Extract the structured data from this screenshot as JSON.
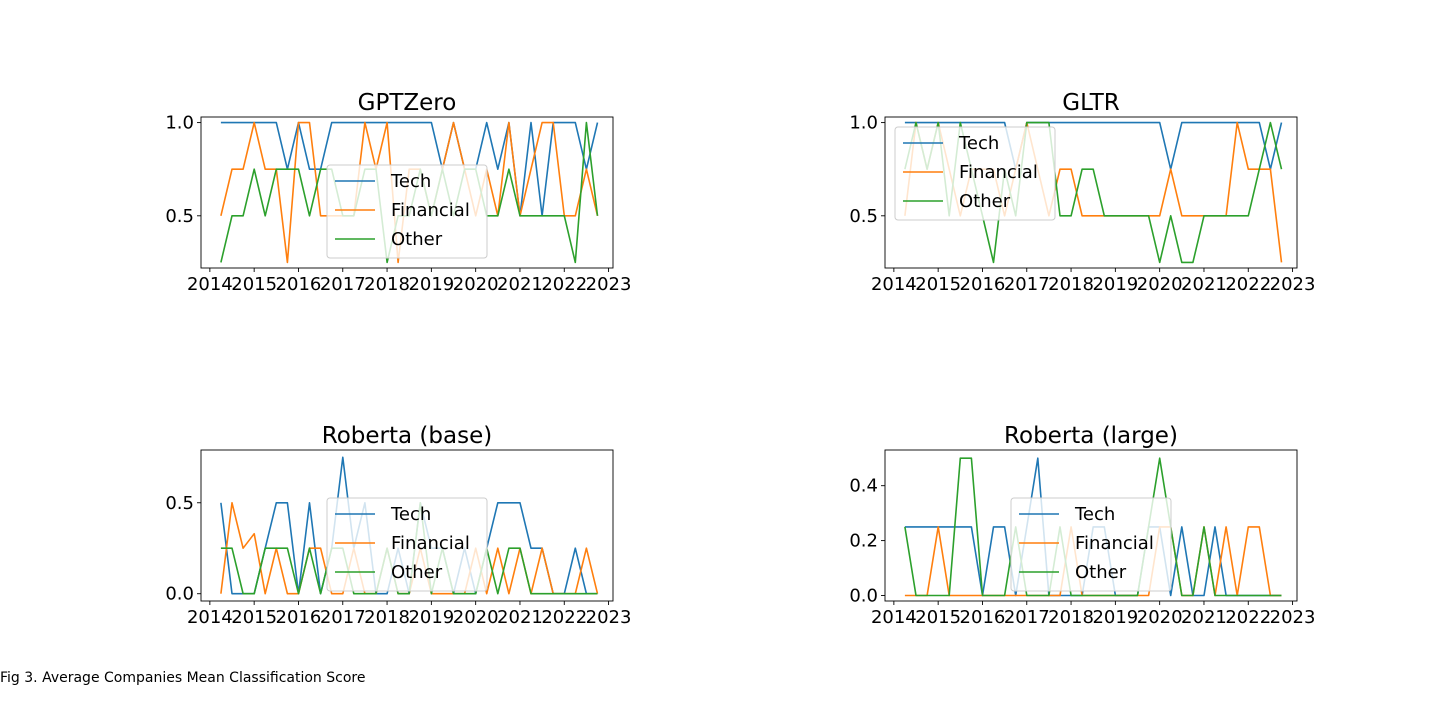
{
  "caption": "Fig 3. Average Companies Mean Classification Score",
  "colors": {
    "Tech": "#1f77b4",
    "Financial": "#ff7f0e",
    "Other": "#2ca02c"
  },
  "chart_data": [
    {
      "type": "line",
      "title": "GPTZero",
      "xlabel": "",
      "ylabel": "",
      "xlim": [
        2013.8,
        2023.1
      ],
      "ylim": [
        0.22,
        1.03
      ],
      "xticks": [
        "2014",
        "2015",
        "2016",
        "2017",
        "2018",
        "2019",
        "2020",
        "2021",
        "2022",
        "2023"
      ],
      "yticks": [
        "0.5",
        "1.0"
      ],
      "legend": [
        "Tech",
        "Financial",
        "Other"
      ],
      "legend_loc": "center",
      "x": [
        2014.25,
        2014.5,
        2014.75,
        2015.0,
        2015.25,
        2015.5,
        2015.75,
        2016.0,
        2016.25,
        2016.5,
        2016.75,
        2017.0,
        2017.25,
        2017.5,
        2017.75,
        2018.0,
        2018.25,
        2018.5,
        2018.75,
        2019.0,
        2019.25,
        2019.5,
        2019.75,
        2020.0,
        2020.25,
        2020.5,
        2020.75,
        2021.0,
        2021.25,
        2021.5,
        2021.75,
        2022.0,
        2022.25,
        2022.5,
        2022.75
      ],
      "series": [
        {
          "name": "Tech",
          "values": [
            1.0,
            1.0,
            1.0,
            1.0,
            1.0,
            1.0,
            0.75,
            1.0,
            0.75,
            0.75,
            1.0,
            1.0,
            1.0,
            1.0,
            1.0,
            1.0,
            1.0,
            1.0,
            1.0,
            1.0,
            0.75,
            1.0,
            0.75,
            0.75,
            1.0,
            0.75,
            1.0,
            0.5,
            1.0,
            0.5,
            1.0,
            1.0,
            1.0,
            0.75,
            1.0
          ]
        },
        {
          "name": "Financial",
          "values": [
            0.5,
            0.75,
            0.75,
            1.0,
            0.75,
            0.75,
            0.25,
            1.0,
            1.0,
            0.5,
            0.5,
            0.5,
            0.5,
            1.0,
            0.75,
            1.0,
            0.25,
            0.75,
            0.75,
            0.5,
            0.75,
            1.0,
            0.75,
            0.5,
            0.75,
            0.5,
            1.0,
            0.5,
            0.75,
            1.0,
            1.0,
            0.5,
            0.5,
            0.75,
            0.5
          ]
        },
        {
          "name": "Other",
          "values": [
            0.25,
            0.5,
            0.5,
            0.75,
            0.5,
            0.75,
            0.75,
            0.75,
            0.5,
            0.75,
            0.75,
            0.5,
            0.5,
            0.75,
            0.75,
            0.25,
            0.5,
            0.5,
            0.75,
            0.5,
            0.75,
            0.5,
            0.75,
            0.75,
            0.5,
            0.5,
            0.75,
            0.5,
            0.5,
            0.5,
            0.5,
            0.5,
            0.25,
            1.0,
            0.5
          ]
        }
      ]
    },
    {
      "type": "line",
      "title": "GLTR",
      "xlabel": "",
      "ylabel": "",
      "xlim": [
        2013.8,
        2023.1
      ],
      "ylim": [
        0.22,
        1.03
      ],
      "xticks": [
        "2014",
        "2015",
        "2016",
        "2017",
        "2018",
        "2019",
        "2020",
        "2021",
        "2022",
        "2023"
      ],
      "yticks": [
        "0.5",
        "1.0"
      ],
      "legend": [
        "Tech",
        "Financial",
        "Other"
      ],
      "legend_loc": "upper left",
      "x": [
        2014.25,
        2014.5,
        2014.75,
        2015.0,
        2015.25,
        2015.5,
        2015.75,
        2016.0,
        2016.25,
        2016.5,
        2016.75,
        2017.0,
        2017.25,
        2017.5,
        2017.75,
        2018.0,
        2018.25,
        2018.5,
        2018.75,
        2019.0,
        2019.25,
        2019.5,
        2019.75,
        2020.0,
        2020.25,
        2020.5,
        2020.75,
        2021.0,
        2021.25,
        2021.5,
        2021.75,
        2022.0,
        2022.25,
        2022.5,
        2022.75
      ],
      "series": [
        {
          "name": "Tech",
          "values": [
            1.0,
            1.0,
            1.0,
            1.0,
            1.0,
            1.0,
            1.0,
            1.0,
            1.0,
            1.0,
            0.75,
            1.0,
            1.0,
            1.0,
            1.0,
            1.0,
            1.0,
            1.0,
            1.0,
            1.0,
            1.0,
            1.0,
            1.0,
            1.0,
            0.75,
            1.0,
            1.0,
            1.0,
            1.0,
            1.0,
            1.0,
            1.0,
            1.0,
            0.75,
            1.0
          ]
        },
        {
          "name": "Financial",
          "values": [
            0.5,
            1.0,
            0.75,
            1.0,
            0.75,
            0.5,
            0.75,
            0.75,
            0.75,
            0.5,
            0.75,
            1.0,
            0.75,
            0.5,
            0.75,
            0.75,
            0.5,
            0.5,
            0.5,
            0.5,
            0.5,
            0.5,
            0.5,
            0.5,
            0.75,
            0.5,
            0.5,
            0.5,
            0.5,
            0.5,
            1.0,
            0.75,
            0.75,
            0.75,
            0.25
          ]
        },
        {
          "name": "Other",
          "values": [
            0.75,
            1.0,
            0.75,
            1.0,
            0.5,
            1.0,
            0.75,
            0.5,
            0.25,
            0.75,
            0.5,
            1.0,
            1.0,
            1.0,
            0.5,
            0.5,
            0.75,
            0.75,
            0.5,
            0.5,
            0.5,
            0.5,
            0.5,
            0.25,
            0.5,
            0.25,
            0.25,
            0.5,
            0.5,
            0.5,
            0.5,
            0.5,
            0.75,
            1.0,
            0.75
          ]
        }
      ]
    },
    {
      "type": "line",
      "title": "Roberta (base)",
      "xlabel": "",
      "ylabel": "",
      "xlim": [
        2013.8,
        2023.1
      ],
      "ylim": [
        -0.04,
        0.79
      ],
      "xticks": [
        "2014",
        "2015",
        "2016",
        "2017",
        "2018",
        "2019",
        "2020",
        "2021",
        "2022",
        "2023"
      ],
      "yticks": [
        "0.0",
        "0.5"
      ],
      "legend": [
        "Tech",
        "Financial",
        "Other"
      ],
      "legend_loc": "center",
      "x": [
        2014.25,
        2014.5,
        2014.75,
        2015.0,
        2015.25,
        2015.5,
        2015.75,
        2016.0,
        2016.25,
        2016.5,
        2016.75,
        2017.0,
        2017.25,
        2017.5,
        2017.75,
        2018.0,
        2018.25,
        2018.5,
        2018.75,
        2019.0,
        2019.25,
        2019.5,
        2019.75,
        2020.0,
        2020.25,
        2020.5,
        2020.75,
        2021.0,
        2021.25,
        2021.5,
        2021.75,
        2022.0,
        2022.25,
        2022.5,
        2022.75
      ],
      "series": [
        {
          "name": "Tech",
          "values": [
            0.5,
            0.0,
            0.0,
            0.0,
            0.25,
            0.5,
            0.5,
            0.0,
            0.5,
            0.0,
            0.25,
            0.75,
            0.25,
            0.5,
            0.0,
            0.0,
            0.25,
            0.0,
            0.5,
            0.25,
            0.25,
            0.0,
            0.25,
            0.0,
            0.25,
            0.5,
            0.5,
            0.5,
            0.25,
            0.25,
            0.0,
            0.0,
            0.25,
            0.0,
            0.0
          ]
        },
        {
          "name": "Financial",
          "values": [
            0.0,
            0.5,
            0.25,
            0.33,
            0.0,
            0.25,
            0.0,
            0.0,
            0.25,
            0.25,
            0.0,
            0.0,
            0.25,
            0.0,
            0.0,
            0.25,
            0.0,
            0.0,
            0.25,
            0.0,
            0.0,
            0.0,
            0.0,
            0.25,
            0.0,
            0.25,
            0.0,
            0.25,
            0.0,
            0.25,
            0.0,
            0.0,
            0.0,
            0.25,
            0.0
          ]
        },
        {
          "name": "Other",
          "values": [
            0.25,
            0.25,
            0.0,
            0.0,
            0.25,
            0.25,
            0.25,
            0.0,
            0.25,
            0.0,
            0.25,
            0.25,
            0.0,
            0.0,
            0.0,
            0.25,
            0.0,
            0.0,
            0.5,
            0.0,
            0.25,
            0.0,
            0.0,
            0.0,
            0.25,
            0.0,
            0.25,
            0.25,
            0.0,
            0.0,
            0.0,
            0.0,
            0.0,
            0.0,
            0.0
          ]
        }
      ]
    },
    {
      "type": "line",
      "title": "Roberta (large)",
      "xlabel": "",
      "ylabel": "",
      "xlim": [
        2013.8,
        2023.1
      ],
      "ylim": [
        -0.02,
        0.53
      ],
      "xticks": [
        "2014",
        "2015",
        "2016",
        "2017",
        "2018",
        "2019",
        "2020",
        "2021",
        "2022",
        "2023"
      ],
      "yticks": [
        "0.0",
        "0.2",
        "0.4"
      ],
      "legend": [
        "Tech",
        "Financial",
        "Other"
      ],
      "legend_loc": "center",
      "x": [
        2014.25,
        2014.5,
        2014.75,
        2015.0,
        2015.25,
        2015.5,
        2015.75,
        2016.0,
        2016.25,
        2016.5,
        2016.75,
        2017.0,
        2017.25,
        2017.5,
        2017.75,
        2018.0,
        2018.25,
        2018.5,
        2018.75,
        2019.0,
        2019.25,
        2019.5,
        2019.75,
        2020.0,
        2020.25,
        2020.5,
        2020.75,
        2021.0,
        2021.25,
        2021.5,
        2021.75,
        2022.0,
        2022.25,
        2022.5,
        2022.75
      ],
      "series": [
        {
          "name": "Tech",
          "values": [
            0.25,
            0.25,
            0.25,
            0.25,
            0.25,
            0.25,
            0.25,
            0.0,
            0.25,
            0.25,
            0.0,
            0.25,
            0.5,
            0.0,
            0.0,
            0.0,
            0.0,
            0.25,
            0.25,
            0.0,
            0.0,
            0.0,
            0.25,
            0.25,
            0.0,
            0.25,
            0.0,
            0.0,
            0.25,
            0.0,
            0.0,
            0.0,
            0.0,
            0.0,
            0.0
          ]
        },
        {
          "name": "Financial",
          "values": [
            0.0,
            0.0,
            0.0,
            0.25,
            0.0,
            0.0,
            0.0,
            0.0,
            0.0,
            0.0,
            0.0,
            0.0,
            0.0,
            0.0,
            0.0,
            0.25,
            0.0,
            0.0,
            0.0,
            0.0,
            0.0,
            0.0,
            0.0,
            0.25,
            0.25,
            0.0,
            0.0,
            0.25,
            0.0,
            0.25,
            0.0,
            0.25,
            0.25,
            0.0,
            0.0
          ]
        },
        {
          "name": "Other",
          "values": [
            0.25,
            0.0,
            0.0,
            0.0,
            0.0,
            0.5,
            0.5,
            0.0,
            0.0,
            0.0,
            0.25,
            0.0,
            0.0,
            0.0,
            0.25,
            0.0,
            0.0,
            0.0,
            0.0,
            0.0,
            0.0,
            0.0,
            0.25,
            0.5,
            0.25,
            0.0,
            0.0,
            0.25,
            0.0,
            0.0,
            0.0,
            0.0,
            0.0,
            0.0,
            0.0
          ]
        }
      ]
    }
  ]
}
